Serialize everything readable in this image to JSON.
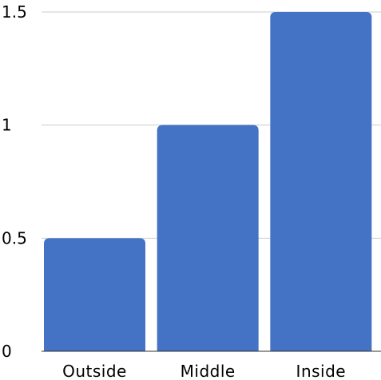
{
  "chart_data": {
    "type": "bar",
    "categories": [
      "Outside",
      "Middle",
      "Inside"
    ],
    "values": [
      0.5,
      1,
      1.5
    ],
    "ylim": [
      0,
      1.5
    ],
    "yticks": [
      {
        "value": 0,
        "label": "0"
      },
      {
        "value": 0.5,
        "label": "0.5"
      },
      {
        "value": 1,
        "label": "1"
      },
      {
        "value": 1.5,
        "label": "1.5"
      }
    ],
    "grid": true,
    "bar_color": "#4472c4",
    "title": "",
    "xlabel": "",
    "ylabel": ""
  }
}
